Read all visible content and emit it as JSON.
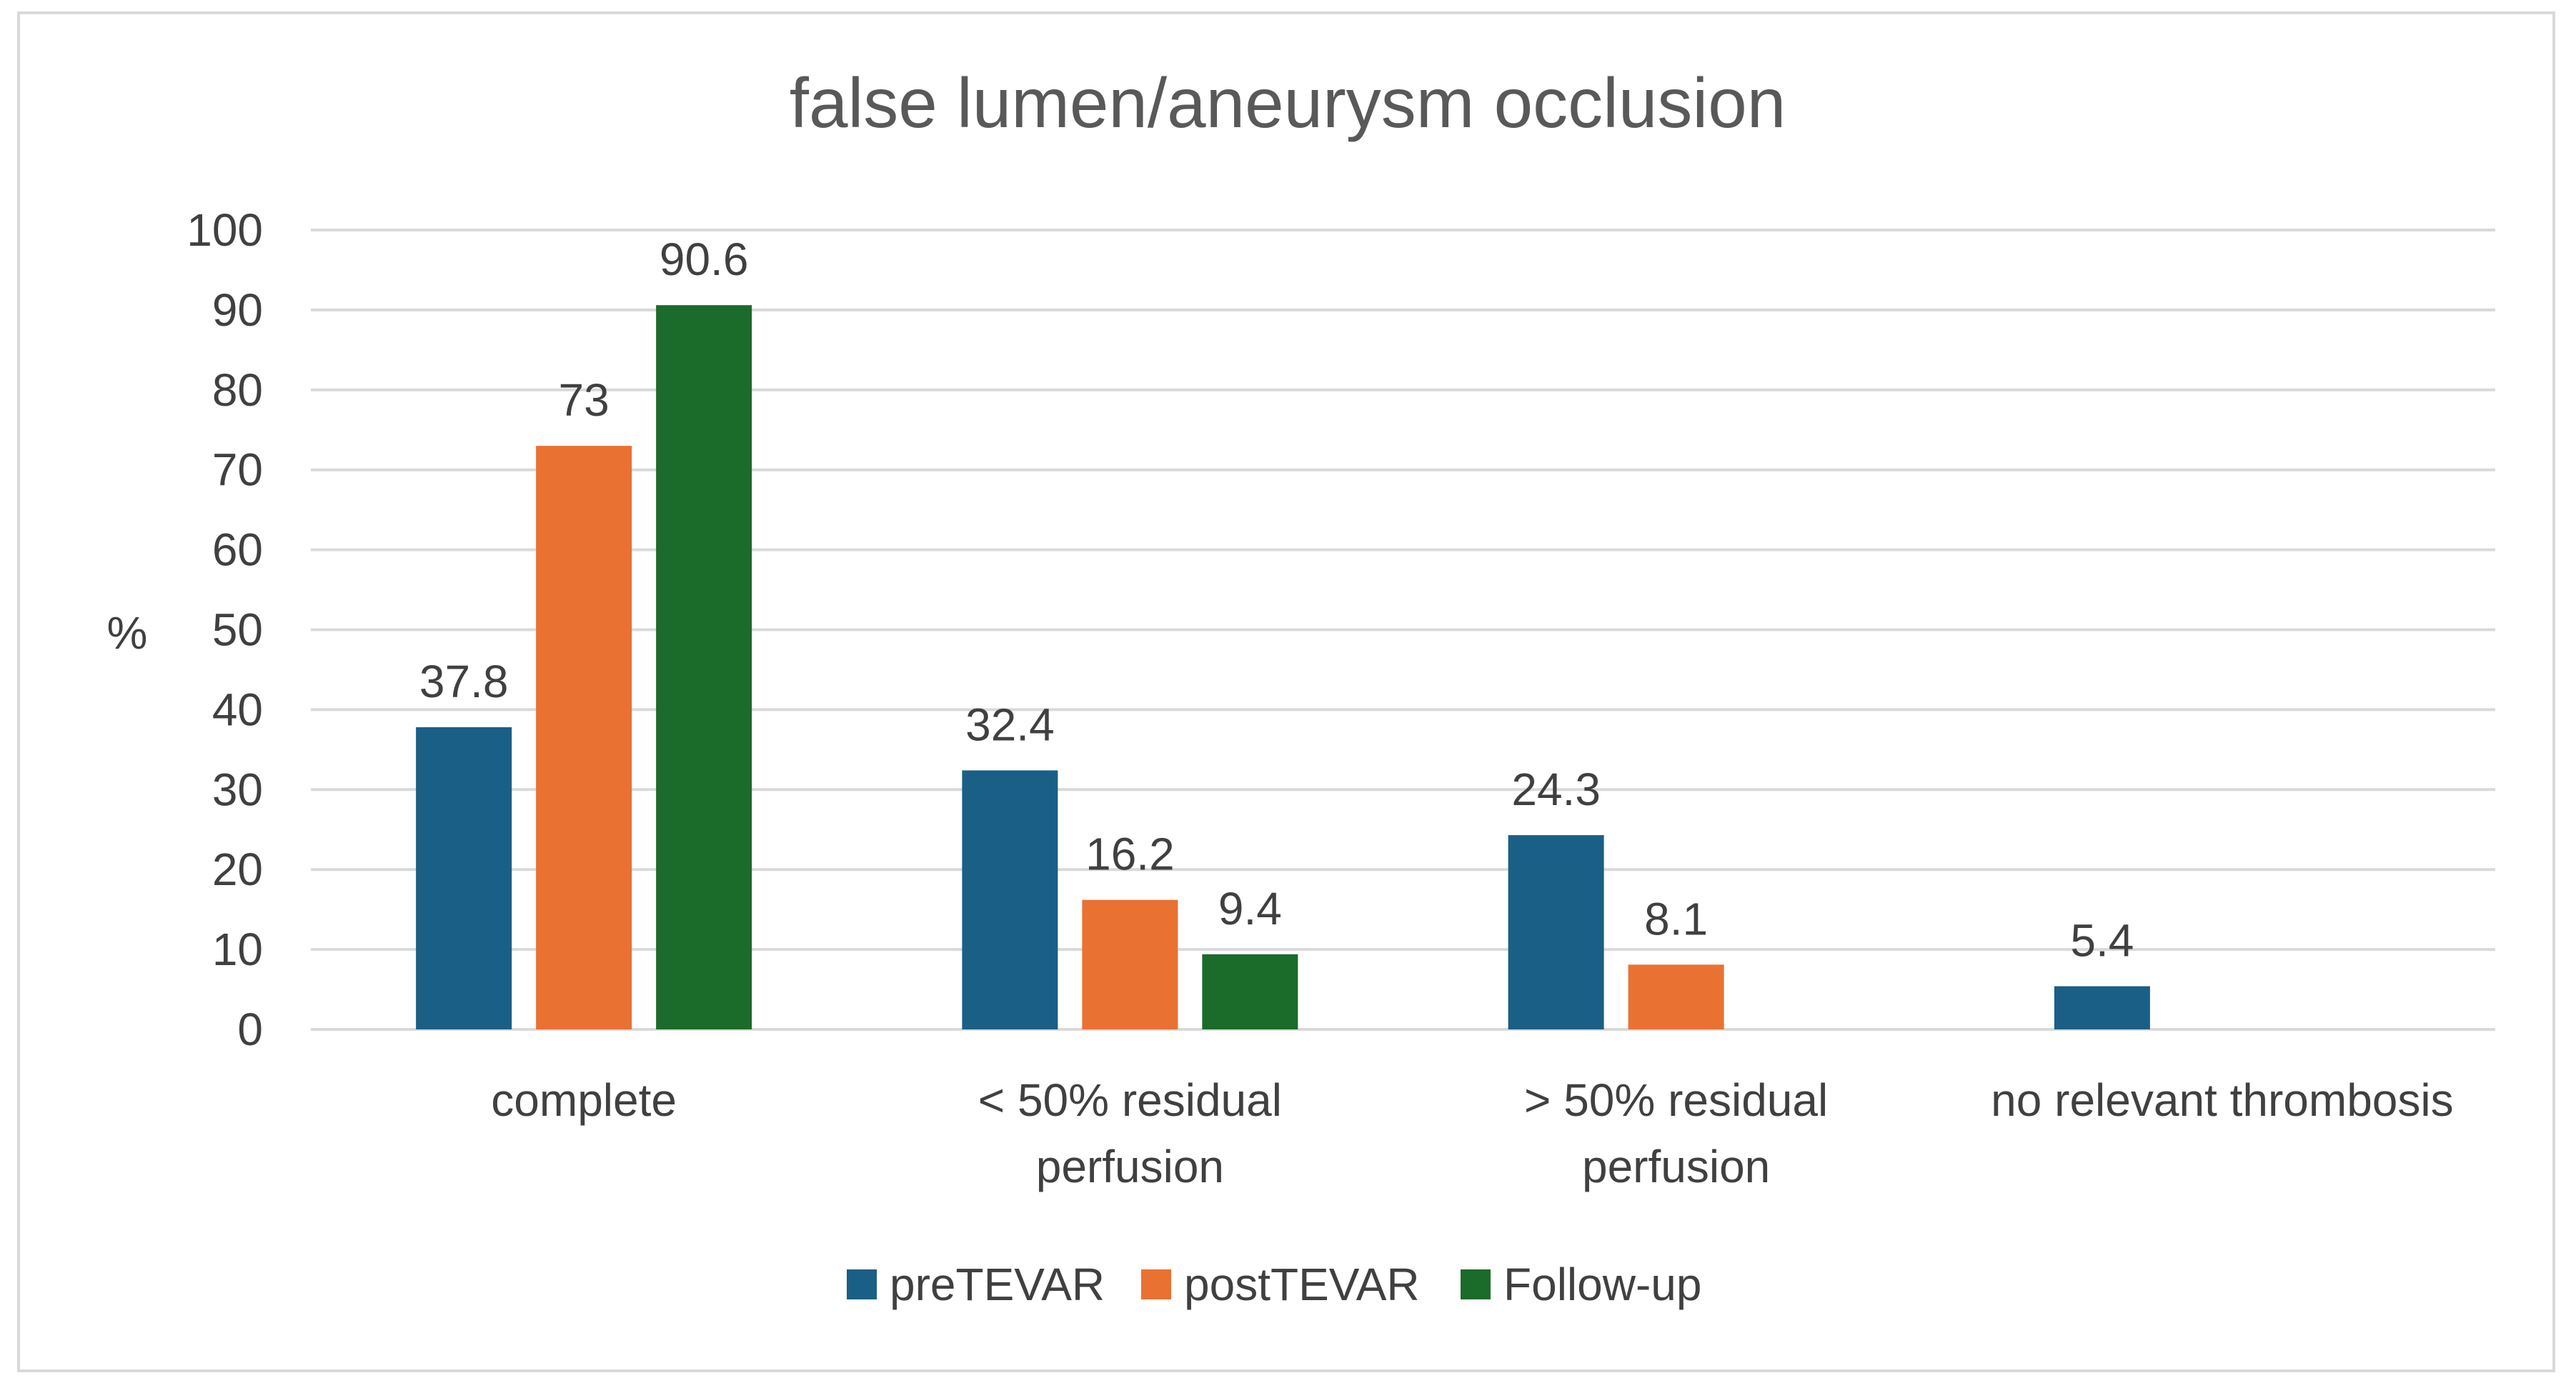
{
  "chart_data": {
    "type": "bar",
    "title": "false lumen/aneurysm occlusion",
    "xlabel": "",
    "ylabel": "%",
    "ylim": [
      0,
      100
    ],
    "yticks": [
      0,
      10,
      20,
      30,
      40,
      50,
      60,
      70,
      80,
      90,
      100
    ],
    "grid": true,
    "legend_position": "bottom",
    "categories": [
      [
        "complete"
      ],
      [
        "< 50% residual",
        "perfusion"
      ],
      [
        "> 50% residual",
        "perfusion"
      ],
      [
        "no relevant thrombosis"
      ]
    ],
    "series": [
      {
        "name": "preTEVAR",
        "color": "#1a5f85",
        "values": [
          37.8,
          32.4,
          24.3,
          5.4
        ],
        "labels": [
          "37.8",
          "32.4",
          "24.3",
          "5.4"
        ]
      },
      {
        "name": "postTEVAR",
        "color": "#e97132",
        "values": [
          73,
          16.2,
          8.1,
          null
        ],
        "labels": [
          "73",
          "16.2",
          "8.1",
          ""
        ]
      },
      {
        "name": "Follow-up",
        "color": "#1b6b2a",
        "values": [
          90.6,
          9.4,
          null,
          null
        ],
        "labels": [
          "90.6",
          "9.4",
          "",
          ""
        ]
      }
    ],
    "colors": {
      "grid": "#d9d9d9",
      "text": "#404040",
      "title": "#595959",
      "frame": "#d9d9d9"
    }
  }
}
